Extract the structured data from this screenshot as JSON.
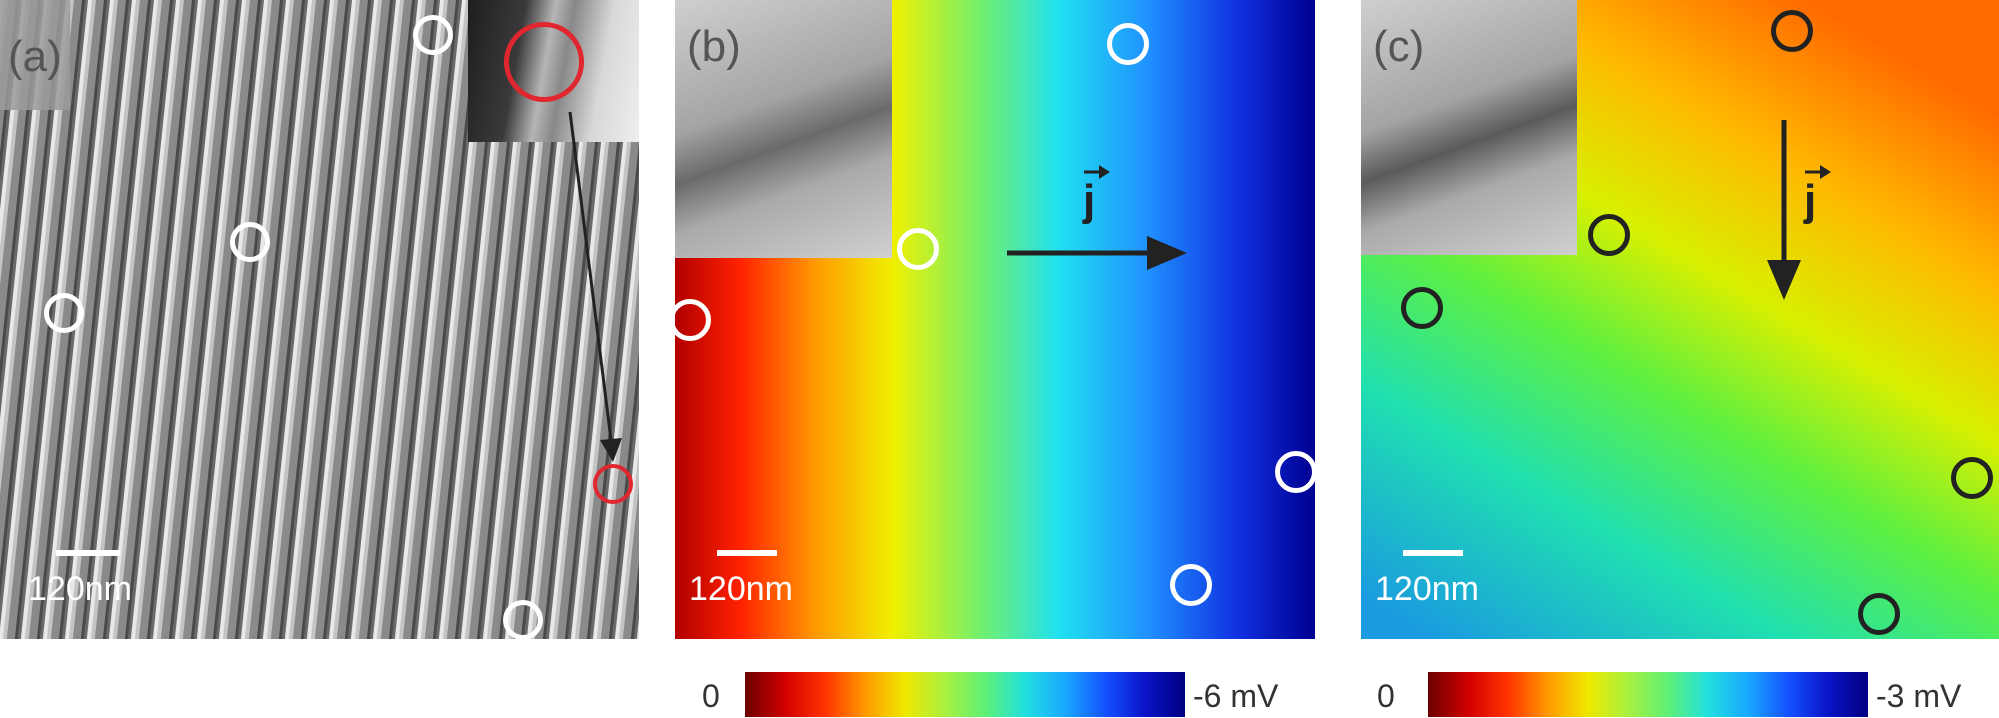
{
  "panels": {
    "a": {
      "label": "(a)",
      "scale_text": "120nm"
    },
    "b": {
      "label": "(b)",
      "scale_text": "120nm",
      "current_symbol": "j"
    },
    "c": {
      "label": "(c)",
      "scale_text": "120nm",
      "current_symbol": "j"
    }
  },
  "colorbars": {
    "b": {
      "min_label": "0",
      "max_label": "-6 mV"
    },
    "c": {
      "min_label": "0",
      "max_label": "-3 mV"
    }
  },
  "colors": {
    "marker_white": "#ffffff",
    "marker_red": "#e0262f",
    "marker_dark": "#222222",
    "arrow": "#222222",
    "colormap": [
      "#6b0000",
      "#d10000",
      "#ff3300",
      "#ff9900",
      "#f0e800",
      "#a8f040",
      "#5ef075",
      "#22e0e0",
      "#1aa8ff",
      "#1452ff",
      "#0a14c8",
      "#000080"
    ]
  }
}
